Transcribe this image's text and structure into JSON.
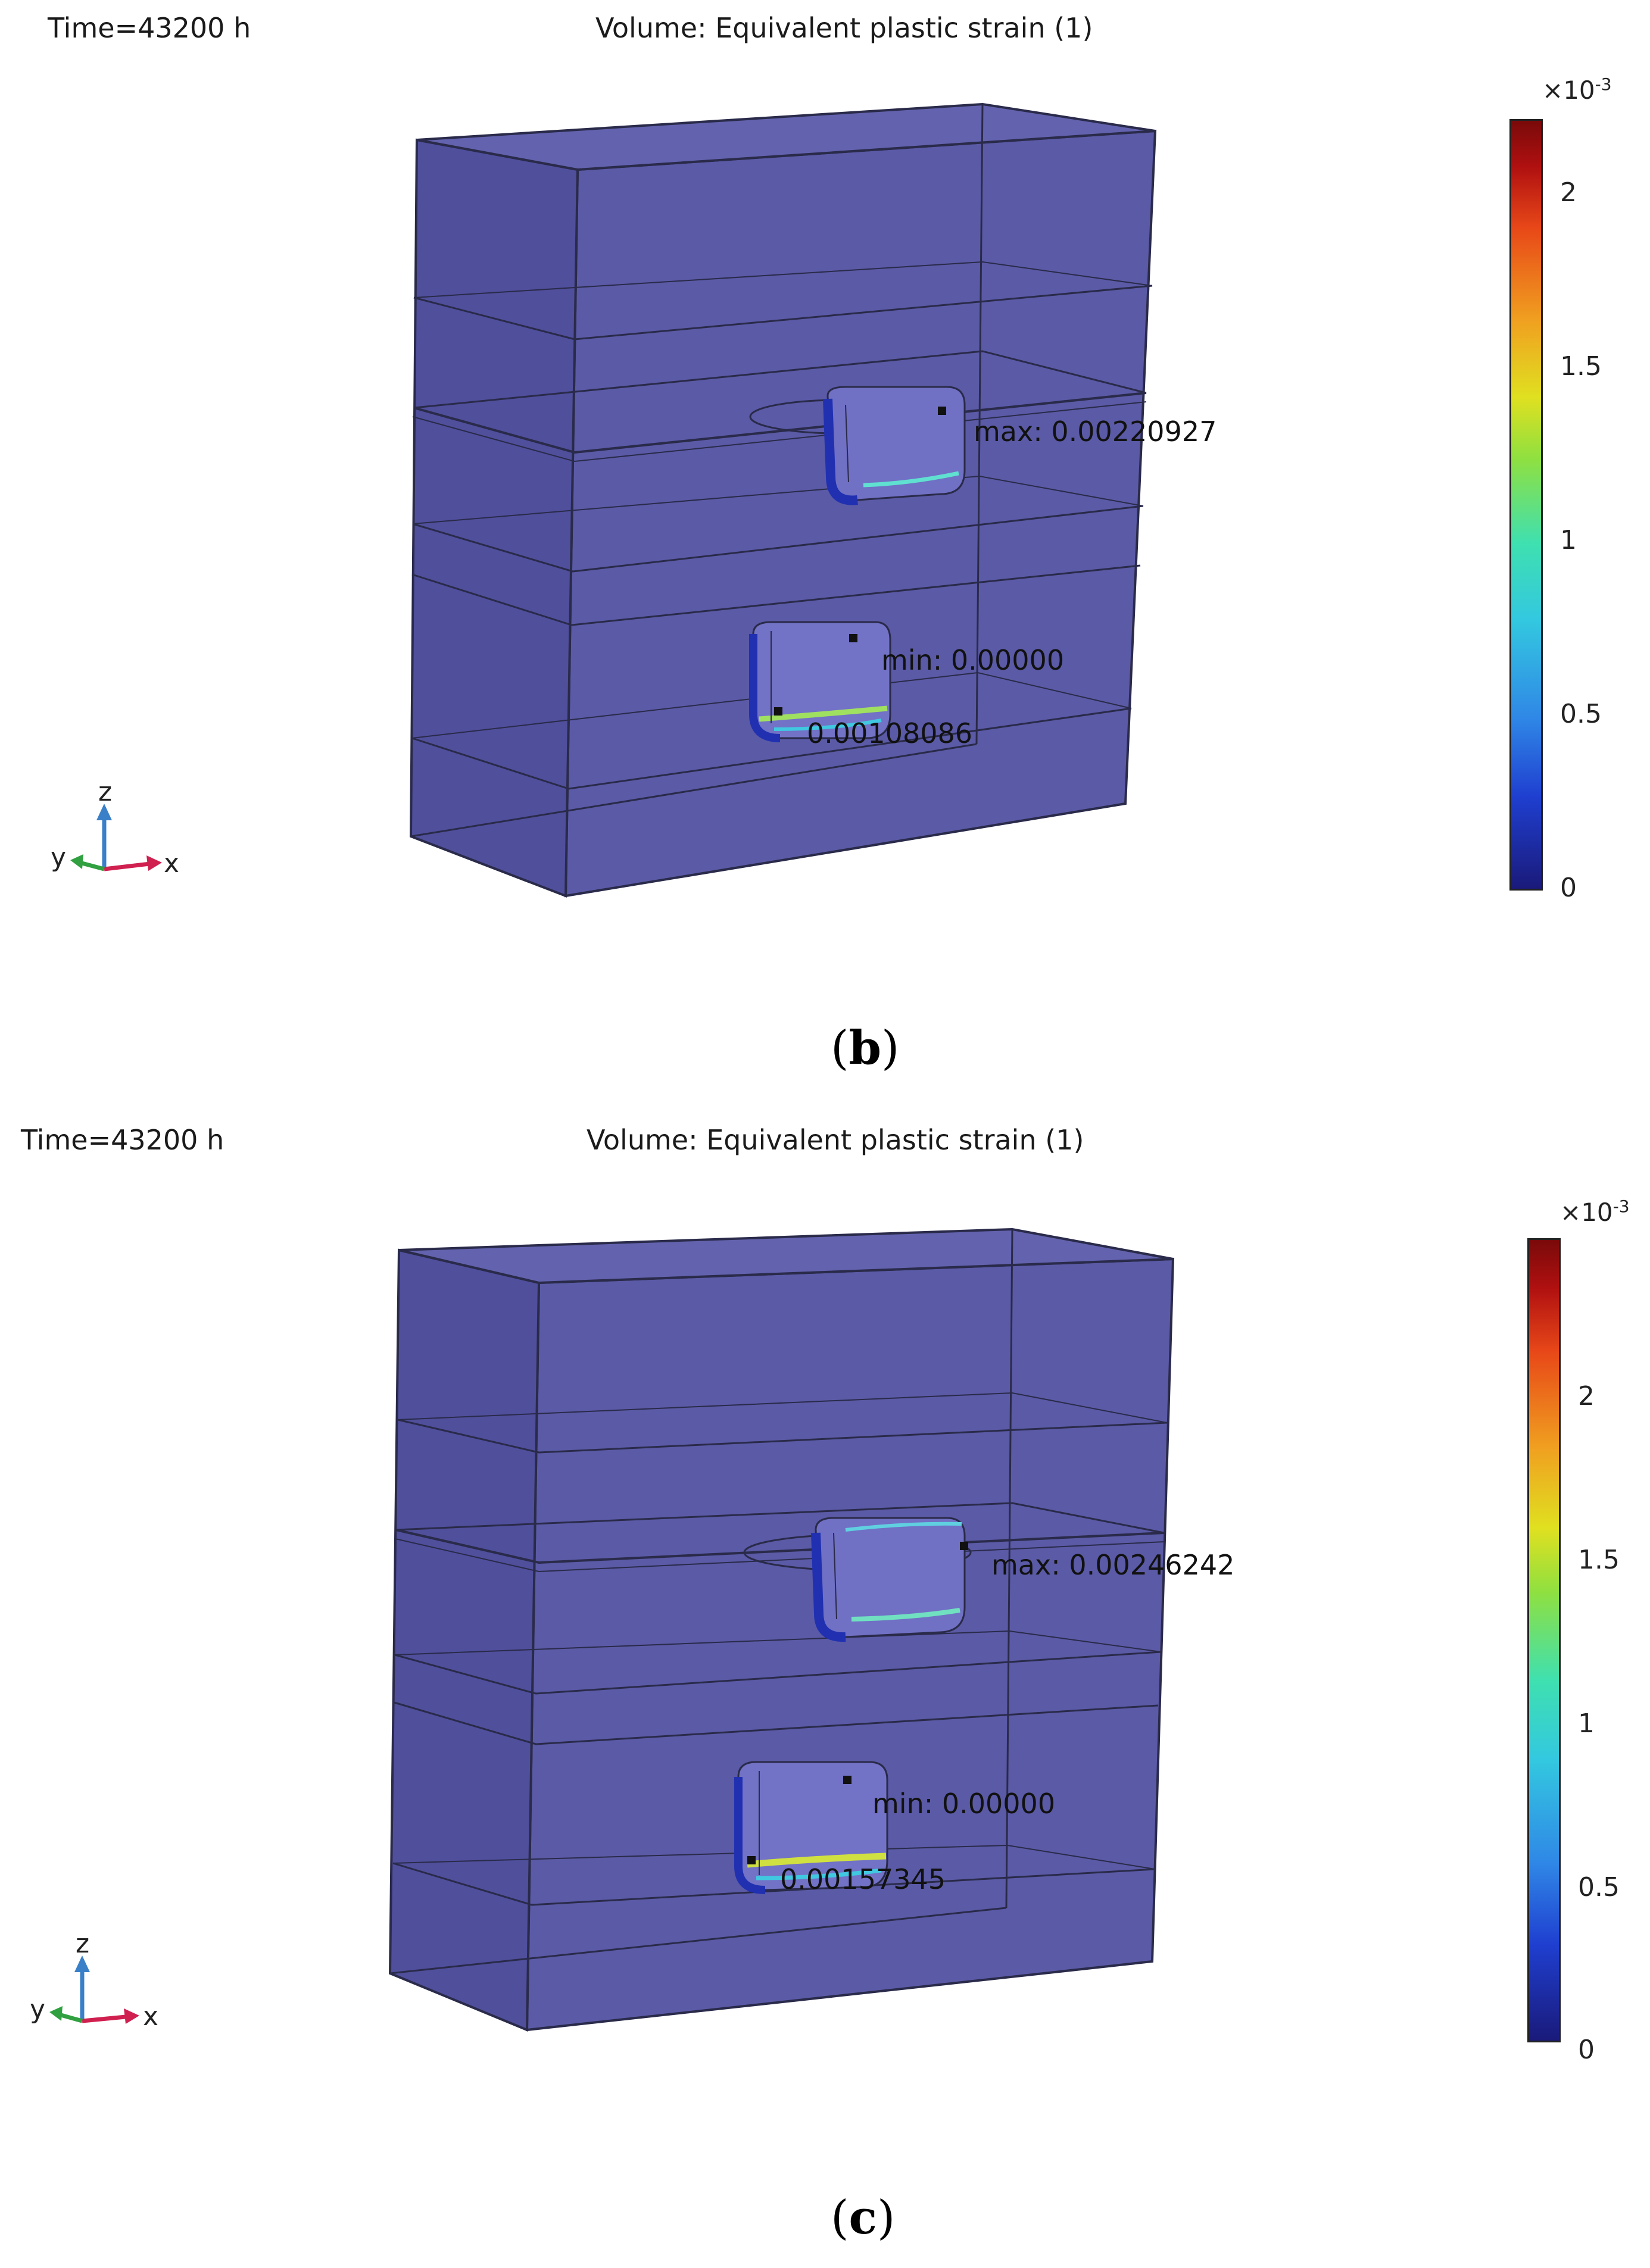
{
  "panels": [
    {
      "id": "b",
      "time_label": "Time=43200 h",
      "title": "Volume: Equivalent plastic strain (1)",
      "colorbar": {
        "multiplier": "×10",
        "exponent": "-3",
        "ticks": [
          "2",
          "1.5",
          "1",
          "0.5",
          "0"
        ],
        "colors": [
          "#1a1a7a",
          "#2f86e6",
          "#33c8e0",
          "#8fe040",
          "#e0e020",
          "#f0a020",
          "#e84818",
          "#7a0a0a"
        ]
      },
      "annotations": {
        "max": "max: 0.00220927",
        "min": "min: 0.00000",
        "value": "0.00108086"
      },
      "axes": {
        "z": "z",
        "y": "y",
        "x": "x"
      },
      "panel_label": {
        "open": "(",
        "letter": "b",
        "close": ")"
      }
    },
    {
      "id": "c",
      "time_label": "Time=43200 h",
      "title": "Volume: Equivalent plastic strain (1)",
      "colorbar": {
        "multiplier": "×10",
        "exponent": "-3",
        "ticks": [
          "2",
          "1.5",
          "1",
          "0.5",
          "0"
        ],
        "colors": [
          "#1a1a7a",
          "#2f86e6",
          "#33c8e0",
          "#8fe040",
          "#e0e020",
          "#f0a020",
          "#e84818",
          "#7a0a0a"
        ]
      },
      "annotations": {
        "max": "max: 0.00246242",
        "min": "min: 0.00000",
        "value": "0.00157345"
      },
      "axes": {
        "z": "z",
        "y": "y",
        "x": "x"
      },
      "panel_label": {
        "open": "(",
        "letter": "c",
        "close": ")"
      }
    }
  ],
  "style": {
    "block_fill": "#5a5aa6",
    "block_side": "#4b4b96",
    "edge_color": "#2a2a4a",
    "axis_x_color": "#d02050",
    "axis_y_color": "#30a040",
    "axis_z_color": "#3a80c8"
  }
}
